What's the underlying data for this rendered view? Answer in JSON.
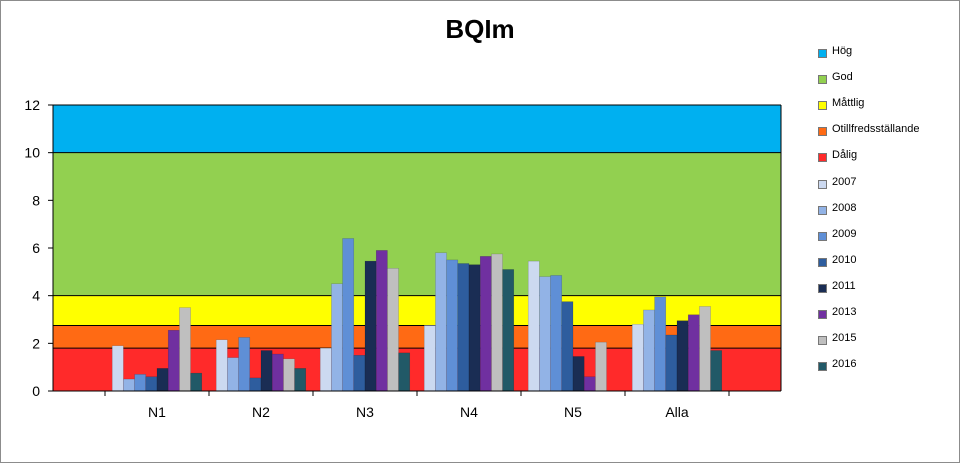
{
  "chart_data": {
    "type": "bar",
    "title": "BQIm",
    "xlabel": "",
    "ylabel": "",
    "ylim": [
      0,
      12
    ],
    "yticks": [
      0,
      2,
      4,
      6,
      8,
      10,
      12
    ],
    "grid": false,
    "legend_position": "right",
    "categories": [
      "N1",
      "N2",
      "N3",
      "N4",
      "N5",
      "Alla"
    ],
    "bands": [
      {
        "name": "Hög",
        "from": 10,
        "to": 12,
        "color": "#00b0f0"
      },
      {
        "name": "God",
        "from": 4,
        "to": 10,
        "color": "#92d050"
      },
      {
        "name": "Måttlig",
        "from": 2.75,
        "to": 4,
        "color": "#ffff00"
      },
      {
        "name": "Otillfredsställande",
        "from": 1.8,
        "to": 2.75,
        "color": "#ff6a14"
      },
      {
        "name": "Dålig",
        "from": 0,
        "to": 1.8,
        "color": "#ff2a2a"
      }
    ],
    "series": [
      {
        "name": "2007",
        "color": "#ccd9f0",
        "values": [
          1.9,
          2.15,
          1.8,
          2.75,
          5.45,
          2.8
        ]
      },
      {
        "name": "2008",
        "color": "#92b3e6",
        "values": [
          0.5,
          1.4,
          4.5,
          5.8,
          4.8,
          3.4
        ]
      },
      {
        "name": "2009",
        "color": "#5f8fd6",
        "values": [
          0.7,
          2.25,
          6.4,
          5.5,
          4.85,
          3.95
        ]
      },
      {
        "name": "2010",
        "color": "#2e5d9e",
        "values": [
          0.6,
          0.55,
          1.5,
          5.35,
          3.75,
          2.35
        ]
      },
      {
        "name": "2011",
        "color": "#1a2d54",
        "values": [
          0.95,
          1.7,
          5.45,
          5.3,
          1.45,
          2.95
        ]
      },
      {
        "name": "2013",
        "color": "#7030a0",
        "values": [
          2.55,
          1.55,
          5.9,
          5.65,
          0.6,
          3.2
        ]
      },
      {
        "name": "2015",
        "color": "#bfbfbf",
        "values": [
          3.5,
          1.35,
          5.15,
          5.75,
          2.05,
          3.55
        ]
      },
      {
        "name": "2016",
        "color": "#215967",
        "values": [
          0.75,
          0.95,
          1.6,
          5.1,
          0,
          1.7
        ]
      }
    ]
  }
}
